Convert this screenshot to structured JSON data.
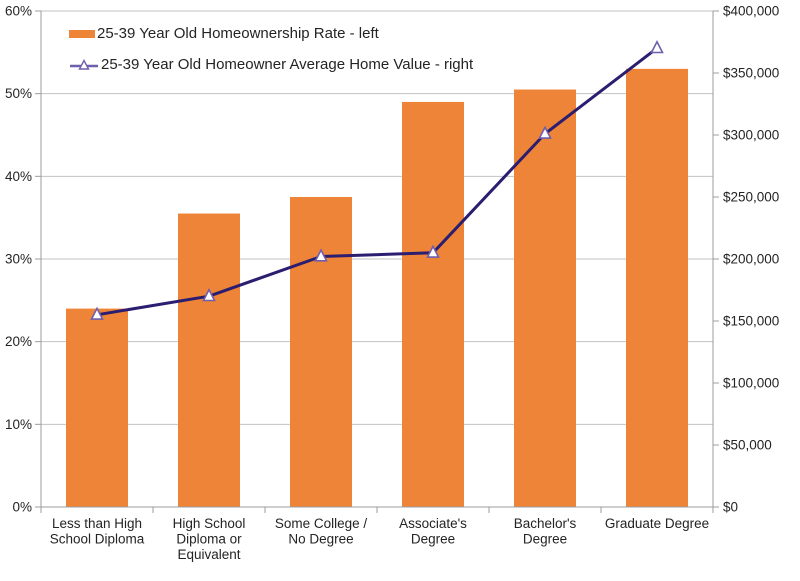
{
  "chart_data": {
    "type": "combo_bar_line",
    "title": "",
    "categories": [
      "Less than High School Diploma",
      "High School Diploma or Equivalent",
      "Some College / No Degree",
      "Associate's Degree",
      "Bachelor's Degree",
      "Graduate Degree"
    ],
    "categories_wrapped": [
      [
        "Less than High",
        "School Diploma"
      ],
      [
        "High School",
        "Diploma or",
        "Equivalent"
      ],
      [
        "Some College /",
        "No Degree"
      ],
      [
        "Associate's",
        "Degree"
      ],
      [
        "Bachelor's",
        "Degree"
      ],
      [
        "Graduate Degree"
      ]
    ],
    "series": [
      {
        "name": "25-39 Year Old Homeownership Rate - left",
        "type": "bar",
        "axis": "left",
        "unit": "percent",
        "values": [
          24.0,
          35.5,
          37.5,
          49.0,
          50.5,
          53.0
        ]
      },
      {
        "name": "25-39 Year Old Homeowner Average Home Value - right",
        "type": "line",
        "axis": "right",
        "unit": "usd",
        "marker": "open-triangle",
        "values": [
          155000,
          170000,
          202000,
          205000,
          301000,
          370000
        ]
      }
    ],
    "left_axis": {
      "min": 0,
      "max": 60,
      "step": 10,
      "tick_labels": [
        "0%",
        "10%",
        "20%",
        "30%",
        "40%",
        "50%",
        "60%"
      ]
    },
    "right_axis": {
      "min": 0,
      "max": 400000,
      "step": 50000,
      "tick_labels": [
        "$0",
        "$50,000",
        "$100,000",
        "$150,000",
        "$200,000",
        "$250,000",
        "$300,000",
        "$350,000",
        "$400,000"
      ]
    },
    "grid": "horizontal gridlines at every 10% of left axis",
    "legend_position": "top-left inside plot area",
    "colors": {
      "bar": "#EE8438",
      "line": "#2B1D70",
      "marker_stroke": "#6F5FAC",
      "marker_fill": "#FFFFFF",
      "gridline": "#C2C2C2",
      "axis": "#9C9C9C",
      "text": "#242424",
      "background": "#FFFFFF"
    }
  }
}
